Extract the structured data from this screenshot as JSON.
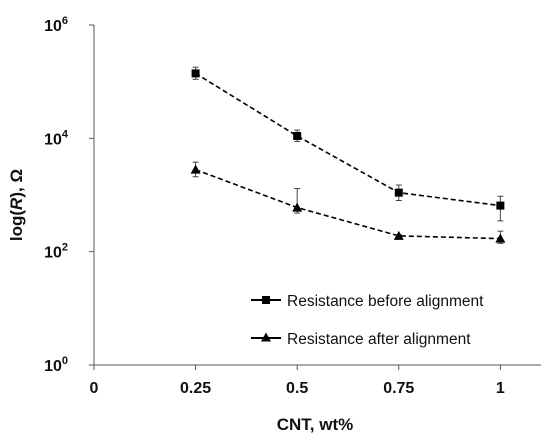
{
  "chart_data": {
    "type": "line",
    "xlabel": "CNT, wt%",
    "ylabel_parts": {
      "prefix": "log(",
      "italic": "R",
      "suffix": "), Ω"
    },
    "xlim": [
      0,
      1.1
    ],
    "ylim": [
      1,
      1000000
    ],
    "yscale": "log",
    "x_ticks": [
      {
        "value": 0,
        "label": "0"
      },
      {
        "value": 0.25,
        "label": "0.25"
      },
      {
        "value": 0.5,
        "label": "0.5"
      },
      {
        "value": 0.75,
        "label": "0.75"
      },
      {
        "value": 1,
        "label": "1"
      }
    ],
    "y_ticks": [
      {
        "value": 1,
        "base": "10",
        "exp": "0"
      },
      {
        "value": 100,
        "base": "10",
        "exp": "2"
      },
      {
        "value": 10000,
        "base": "10",
        "exp": "4"
      },
      {
        "value": 1000000,
        "base": "10",
        "exp": "6"
      }
    ],
    "grid": false,
    "legend_position": "bottom-right",
    "series": [
      {
        "name": "Resistance before alignment",
        "marker": "square",
        "line_style": "dashed",
        "color": "#000000",
        "x": [
          0.25,
          0.5,
          0.75,
          1
        ],
        "y": [
          140000,
          11000,
          1100,
          650
        ],
        "err_low": [
          110000,
          8800,
          800,
          350
        ],
        "err_high": [
          180000,
          14000,
          1500,
          950
        ]
      },
      {
        "name": "Resistance after alignment",
        "marker": "triangle",
        "line_style": "dashed",
        "color": "#000000",
        "x": [
          0.25,
          0.5,
          0.75,
          1
        ],
        "y": [
          2800,
          600,
          190,
          170
        ],
        "err_low": [
          2100,
          480,
          175,
          140
        ],
        "err_high": [
          3800,
          1300,
          200,
          230
        ]
      }
    ]
  }
}
